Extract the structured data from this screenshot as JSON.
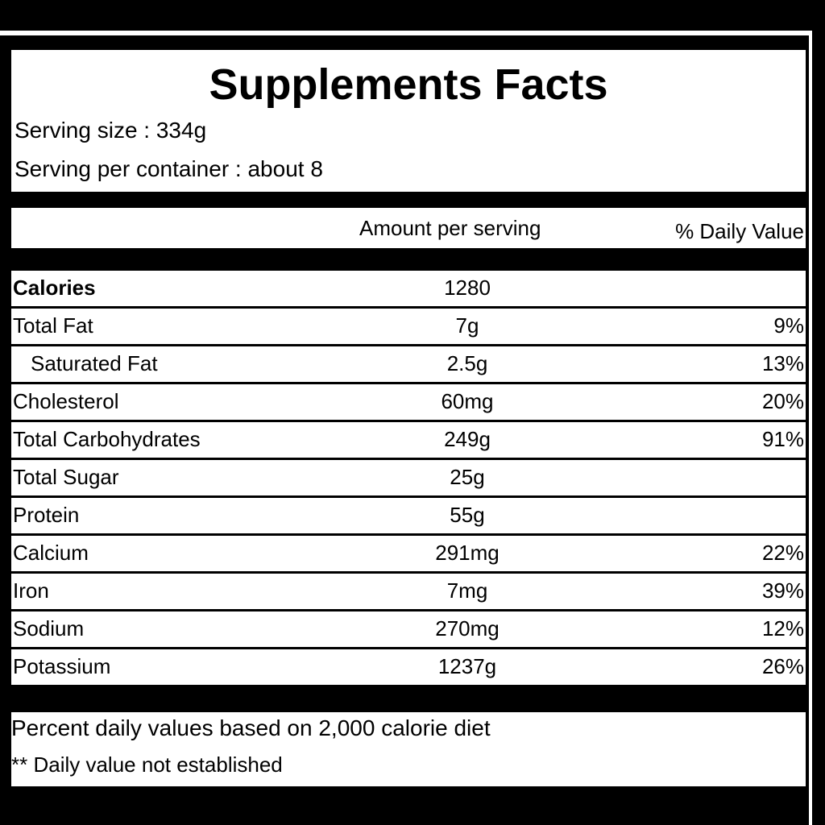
{
  "title": "Supplements Facts",
  "serving_size": "Serving size : 334g",
  "servings_per_container": "Serving per container : about 8",
  "header": {
    "amount": "Amount per serving",
    "daily_value": "% Daily Value"
  },
  "rows": [
    {
      "name": "Calories",
      "amount": "1280"
    },
    {
      "name": "Total Fat",
      "amount": "7g",
      "daily_value": "9%"
    },
    {
      "name": "Saturated Fat",
      "amount": "2.5g",
      "daily_value": "13%"
    },
    {
      "name": "Cholesterol",
      "amount": "60mg",
      "daily_value": "20%"
    },
    {
      "name": "Total Carbohydrates",
      "amount": "249g",
      "daily_value": "91%"
    },
    {
      "name": "Total Sugar",
      "amount": "25g"
    },
    {
      "name": "Protein",
      "amount": "55g"
    },
    {
      "name": "Calcium",
      "amount": "291mg",
      "daily_value": "22%"
    },
    {
      "name": "Iron",
      "amount": "7mg",
      "daily_value": "39%"
    },
    {
      "name": "Sodium",
      "amount": "270mg",
      "daily_value": "12%"
    },
    {
      "name": "Potassium",
      "amount": "1237g",
      "daily_value": "26%"
    }
  ],
  "footer": {
    "note": "Percent daily values based on 2,000 calorie diet",
    "daily_value_note": "** Daily value not established"
  }
}
